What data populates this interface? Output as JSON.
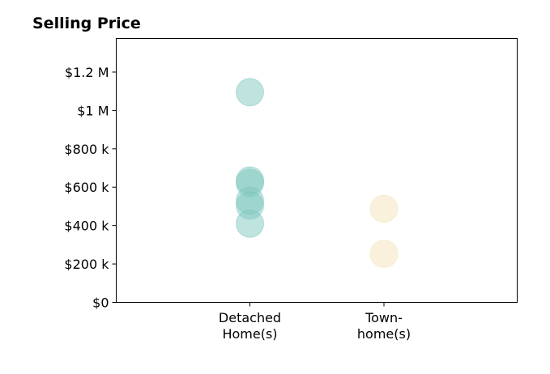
{
  "chart_data": {
    "type": "scatter",
    "title": "Selling Price",
    "xlabel": "",
    "ylabel": "",
    "categories": [
      [
        "Detached",
        "Home(s)"
      ],
      [
        "Town-",
        "home(s)"
      ]
    ],
    "ylim": [
      0,
      1375000
    ],
    "yticks": [
      {
        "value": 0,
        "label": "$0"
      },
      {
        "value": 200000,
        "label": "$200 k"
      },
      {
        "value": 400000,
        "label": "$400 k"
      },
      {
        "value": 600000,
        "label": "$600 k"
      },
      {
        "value": 800000,
        "label": "$800 k"
      },
      {
        "value": 1000000,
        "label": "$1 M"
      },
      {
        "value": 1200000,
        "label": "$1.2 M"
      }
    ],
    "series": [
      {
        "category_index": 0,
        "color": "#7fc8bf",
        "values": [
          1095000,
          635000,
          622000,
          530000,
          505000,
          410000
        ]
      },
      {
        "category_index": 1,
        "color": "#f3e3b8",
        "values": [
          487000,
          253000
        ]
      }
    ],
    "grid": false,
    "legend": "none"
  }
}
